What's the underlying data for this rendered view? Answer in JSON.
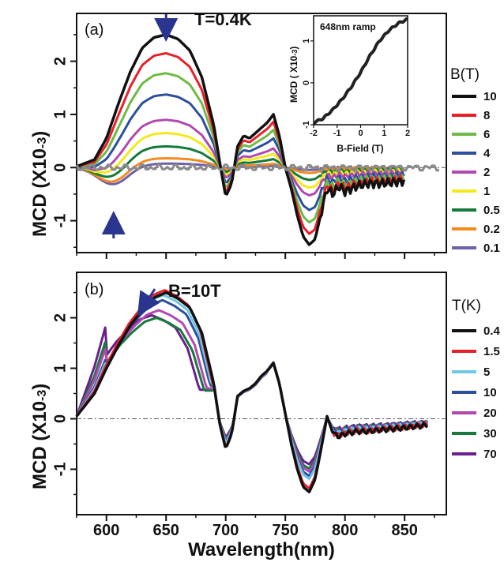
{
  "chart_data": [
    {
      "type": "line",
      "panel_label": "(a)",
      "title": "T=0.4K",
      "ylabel": "MCD (X10",
      "ylabel_exp": "-3",
      "ylabel_close": ")",
      "xlabel": "",
      "xlim": [
        575,
        885
      ],
      "ylim": [
        -1.6,
        2.9
      ],
      "yticks": [
        -1,
        0,
        1,
        2
      ],
      "ytick_labels": [
        "-1",
        "0",
        "1",
        "2"
      ],
      "legend_title": "B(T)",
      "legend_position": "right",
      "grid": false,
      "arrows": [
        {
          "x": 650,
          "direction": "down"
        },
        {
          "x": 606,
          "direction": "up"
        }
      ],
      "series": [
        {
          "name": "10",
          "color": "#111111",
          "scale": 1.0
        },
        {
          "name": "8",
          "color": "#e8202a",
          "scale": 0.86
        },
        {
          "name": "6",
          "color": "#6dbb45",
          "scale": 0.71
        },
        {
          "name": "4",
          "color": "#2e4f9e",
          "scale": 0.55
        },
        {
          "name": "2",
          "color": "#b04ab0",
          "scale": 0.36
        },
        {
          "name": "1",
          "color": "#f2ea1c",
          "scale": 0.26
        },
        {
          "name": "0.5",
          "color": "#157a3a",
          "scale": 0.16
        },
        {
          "name": "0.2",
          "color": "#f58a1f",
          "scale": 0.07
        },
        {
          "name": "0.1",
          "color": "#6a62aa",
          "scale": 0.03
        }
      ],
      "base_curve": {
        "x": [
          575,
          590,
          600,
          610,
          620,
          630,
          640,
          650,
          660,
          670,
          680,
          690,
          695,
          700,
          705,
          710,
          715,
          720,
          725,
          730,
          735,
          740,
          745,
          750,
          755,
          760,
          765,
          770,
          775,
          780,
          785,
          790,
          795,
          800,
          810,
          820,
          830,
          840,
          850
        ],
        "y": [
          0.02,
          0.15,
          0.55,
          1.2,
          1.8,
          2.25,
          2.45,
          2.5,
          2.42,
          2.2,
          1.7,
          0.8,
          0.1,
          -0.55,
          -0.3,
          0.4,
          0.6,
          0.55,
          0.65,
          0.75,
          0.85,
          1.0,
          0.6,
          0.0,
          -0.4,
          -0.9,
          -1.3,
          -1.45,
          -1.35,
          -0.85,
          -0.4,
          -0.5,
          -0.35,
          -0.45,
          -0.35,
          -0.3,
          -0.3,
          -0.28,
          -0.25
        ]
      },
      "low_field_dip": {
        "x": 606,
        "depth": 0.35,
        "width": 18
      }
    },
    {
      "type": "line",
      "panel_label": "(b)",
      "title": "B=10T",
      "ylabel": "MCD (X10",
      "ylabel_exp": "-3",
      "ylabel_close": ")",
      "xlabel": "Wavelength(nm)",
      "xlim": [
        575,
        885
      ],
      "ylim": [
        -1.9,
        2.9
      ],
      "xticks": [
        600,
        650,
        700,
        750,
        800,
        850
      ],
      "xtick_labels": [
        "600",
        "650",
        "700",
        "750",
        "800",
        "850"
      ],
      "yticks": [
        -1,
        0,
        1,
        2
      ],
      "ytick_labels": [
        "-1",
        "0",
        "1",
        "2"
      ],
      "legend_title": "T(K)",
      "legend_position": "right",
      "grid": false,
      "zero_line": true,
      "arrows": [
        {
          "x": 630,
          "direction": "down-left"
        }
      ],
      "series": [
        {
          "name": "0.4",
          "color": "#111111",
          "peak": 2.5,
          "shift": 0,
          "lowscale": 1.0
        },
        {
          "name": "1.5",
          "color": "#e8202a",
          "peak": 2.55,
          "shift": 1,
          "lowscale": 0.95
        },
        {
          "name": "5",
          "color": "#6ec8e4",
          "peak": 2.45,
          "shift": 2,
          "lowscale": 0.82
        },
        {
          "name": "10",
          "color": "#2e4f9e",
          "peak": 2.35,
          "shift": 3,
          "lowscale": 0.78
        },
        {
          "name": "20",
          "color": "#b04ab0",
          "peak": 2.15,
          "shift": 6,
          "lowscale": 0.72
        },
        {
          "name": "30",
          "color": "#157a3a",
          "peak": 2.0,
          "shift": 8,
          "lowscale": 0.68
        },
        {
          "name": "70",
          "color": "#6a1f8a",
          "peak": 2.05,
          "shift": 12,
          "lowscale": 0.62
        }
      ],
      "base_curve": {
        "x": [
          575,
          590,
          600,
          610,
          620,
          630,
          640,
          650,
          660,
          670,
          680,
          690,
          695,
          700,
          705,
          710,
          715,
          720,
          725,
          730,
          735,
          740,
          745,
          750,
          755,
          760,
          765,
          770,
          775,
          780,
          785,
          790,
          795,
          800,
          810,
          820,
          830,
          840,
          850,
          860,
          870
        ],
        "y": [
          0.05,
          0.5,
          1.0,
          1.45,
          1.85,
          2.15,
          2.4,
          2.5,
          2.38,
          2.2,
          1.7,
          0.7,
          -0.1,
          -0.6,
          -0.3,
          0.45,
          0.55,
          0.6,
          0.7,
          0.85,
          0.95,
          1.1,
          0.7,
          0.1,
          -0.5,
          -1.0,
          -1.35,
          -1.45,
          -1.2,
          -0.6,
          0.05,
          -0.3,
          -0.35,
          -0.3,
          -0.25,
          -0.25,
          -0.22,
          -0.2,
          -0.18,
          -0.15,
          -0.12
        ]
      }
    }
  ],
  "inset": {
    "title": "648nm ramp",
    "xlabel": "B-Field (T)",
    "ylabel": "MCD  ( X10",
    "ylabel_exp": "-3",
    "ylabel_close": ")",
    "xlim": [
      -2,
      2
    ],
    "ylim": [
      -1,
      1.6
    ],
    "xticks": [
      -2,
      -1,
      0,
      1,
      2
    ],
    "xtick_labels": [
      "-2",
      "-1",
      "0",
      "1",
      "2"
    ],
    "yticks": [
      -1,
      0,
      1
    ],
    "ytick_labels": [
      "-1",
      "0",
      "1"
    ],
    "x": [
      -2,
      -1.6,
      -1.2,
      -0.8,
      -0.4,
      0,
      0.4,
      0.8,
      1.2,
      1.6,
      2
    ],
    "y": [
      -0.95,
      -0.85,
      -0.65,
      -0.4,
      -0.1,
      0.25,
      0.65,
      1.0,
      1.25,
      1.42,
      1.52
    ]
  }
}
